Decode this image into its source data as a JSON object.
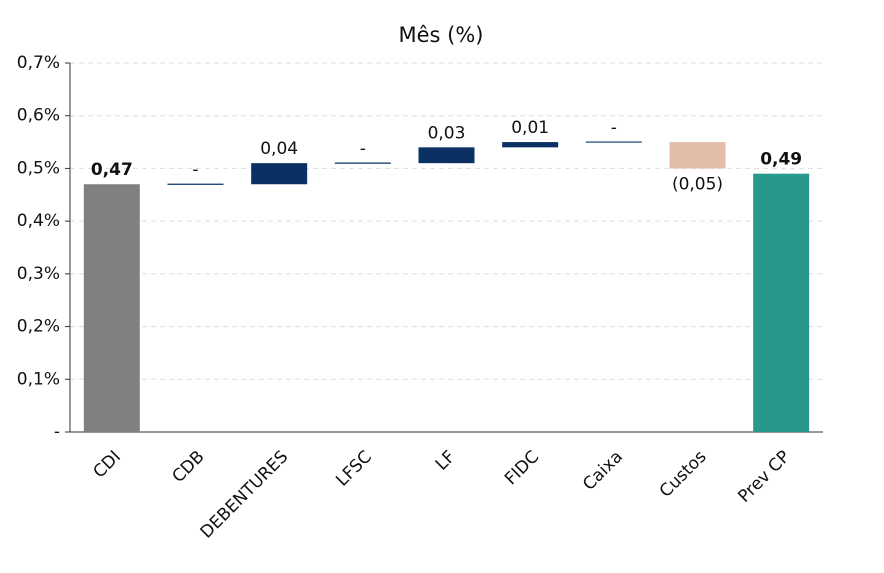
{
  "chart_data": {
    "type": "waterfall",
    "title": "Mês (%)",
    "categories": [
      "CDI",
      "CDB",
      "DEBENTURES",
      "LFSC",
      "LF",
      "FIDC",
      "Caixa",
      "Custos",
      "Prev CP"
    ],
    "values": [
      0.47,
      0,
      0.04,
      0,
      0.03,
      0.01,
      0,
      -0.05,
      0.49
    ],
    "value_labels": [
      "0,47",
      "-",
      "0,04",
      "-",
      "0,03",
      "0,01",
      "-",
      "(0,05)",
      "0,49"
    ],
    "colors": {
      "start": "#808080",
      "increase": "#0b3064",
      "decrease": "#e2bda8",
      "end": "#26998a"
    },
    "ylim": [
      0,
      0.7
    ],
    "yticks": [
      {
        "value": 0,
        "label": "-"
      },
      {
        "value": 0.1,
        "label": "0,1%"
      },
      {
        "value": 0.2,
        "label": "0,2%"
      },
      {
        "value": 0.3,
        "label": "0,3%"
      },
      {
        "value": 0.4,
        "label": "0,4%"
      },
      {
        "value": 0.5,
        "label": "0,5%"
      },
      {
        "value": 0.6,
        "label": "0,6%"
      },
      {
        "value": 0.7,
        "label": "0,7%"
      }
    ],
    "grid": true
  }
}
